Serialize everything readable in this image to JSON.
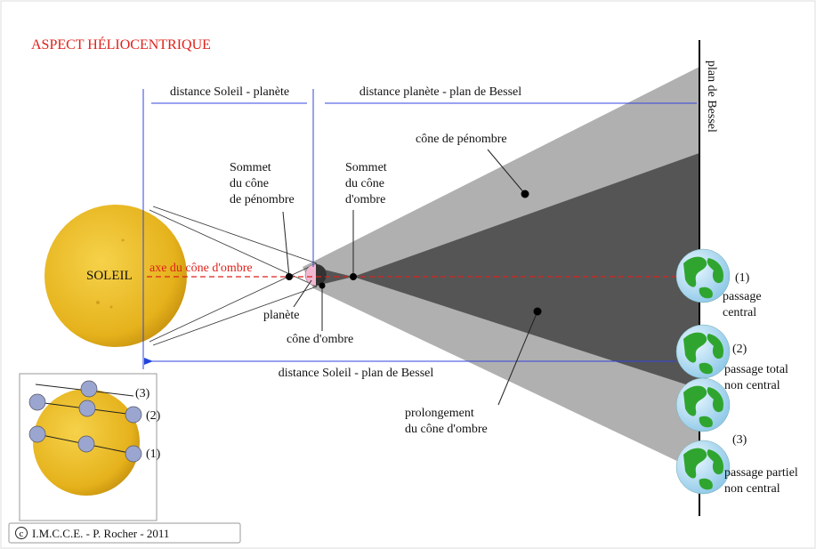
{
  "title": "ASPECT HÉLIOCENTRIQUE",
  "distances": {
    "sun_planet": "distance Soleil - planète",
    "planet_bessel": "distance planète - plan de Bessel",
    "sun_bessel": "distance Soleil - plan de Bessel"
  },
  "bessel_plane": "plan de Bessel",
  "penumbra_cone": "cône de pénombre",
  "penumbra_apex": [
    "Sommet",
    "du cône",
    "de pénombre"
  ],
  "umbra_apex": [
    "Sommet",
    "du cône",
    "d'ombre"
  ],
  "sun": "SOLEIL",
  "axis": "axe du cône d'ombre",
  "planet": "planète",
  "umbra_cone": "cône d'ombre",
  "umbra_extension": [
    "prolongement",
    "du cône d'ombre"
  ],
  "cases": [
    {
      "number": "(1)",
      "lines": [
        "passage",
        "central"
      ]
    },
    {
      "number": "(2)",
      "lines": [
        "passage total",
        "non central"
      ]
    },
    {
      "number": "(3)",
      "lines": [
        "passage partiel",
        "non central"
      ]
    }
  ],
  "inset": [
    "(3)",
    "(2)",
    "(1)"
  ],
  "credit": {
    "symbol": "c",
    "text": "I.M.C.C.E. -  P. Rocher - 2011"
  }
}
